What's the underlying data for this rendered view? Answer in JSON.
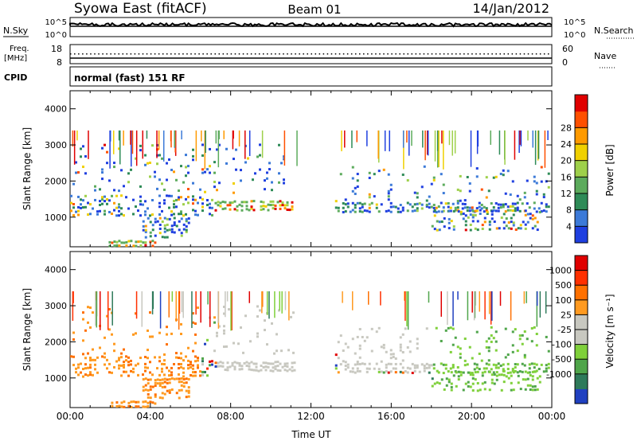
{
  "header": {
    "title": "Syowa East (fitACF)",
    "beam": "Beam 01",
    "date": "14/Jan/2012"
  },
  "top_panel": {
    "nsky_label": "N.Sky",
    "nsearch_label": "N.Search",
    "left_ticks": [
      "10^5",
      "10^0"
    ],
    "right_ticks": [
      "10^5",
      "10^0"
    ],
    "freq_label": "Freq.",
    "freq_unit": "[MHz]",
    "freq_ticks": [
      "18",
      "8"
    ],
    "nave_label": "Nave",
    "nave_ticks": [
      "60",
      "0"
    ],
    "cpid_label": "CPID",
    "cpid_value": "normal (fast) 151 RF"
  },
  "chart_data": [
    {
      "type": "heatmap",
      "name": "power",
      "ylabel": "Slant Range [km]",
      "ylim": [
        180,
        4500
      ],
      "yticks": [
        "1000",
        "2000",
        "3000",
        "4000"
      ],
      "x_ticks": [
        "00:00",
        "04:00",
        "08:00",
        "12:00",
        "16:00",
        "20:00",
        "00:00"
      ],
      "colorbar": {
        "label": "Power [dB]",
        "ticks": [
          "4",
          "8",
          "12",
          "16",
          "20",
          "24",
          "28"
        ],
        "colors": [
          "#1f3fe0",
          "#3c7ad8",
          "#2e8b57",
          "#5cab5c",
          "#9ed04a",
          "#f0d000",
          "#ff9a00",
          "#ff5000",
          "#e00000"
        ]
      }
    },
    {
      "type": "heatmap",
      "name": "velocity",
      "ylabel": "Slant Range [km]",
      "ylim": [
        180,
        4500
      ],
      "yticks": [
        "1000",
        "2000",
        "3000",
        "4000"
      ],
      "x_ticks": [
        "00:00",
        "04:00",
        "08:00",
        "12:00",
        "16:00",
        "20:00",
        "00:00"
      ],
      "xlabel": "Time UT",
      "colorbar": {
        "label": "Velocity [m s⁻¹]",
        "ticks": [
          "1000",
          "500",
          "100",
          "25",
          "-25",
          "-100",
          "-500",
          "-1000"
        ],
        "colors": [
          "#2040c0",
          "#2e7a5a",
          "#4fa54a",
          "#7fd03a",
          "#c8c8c0",
          "#c8c8c0",
          "#ff9a20",
          "#ff7000",
          "#ff3000",
          "#e00000"
        ]
      }
    }
  ]
}
